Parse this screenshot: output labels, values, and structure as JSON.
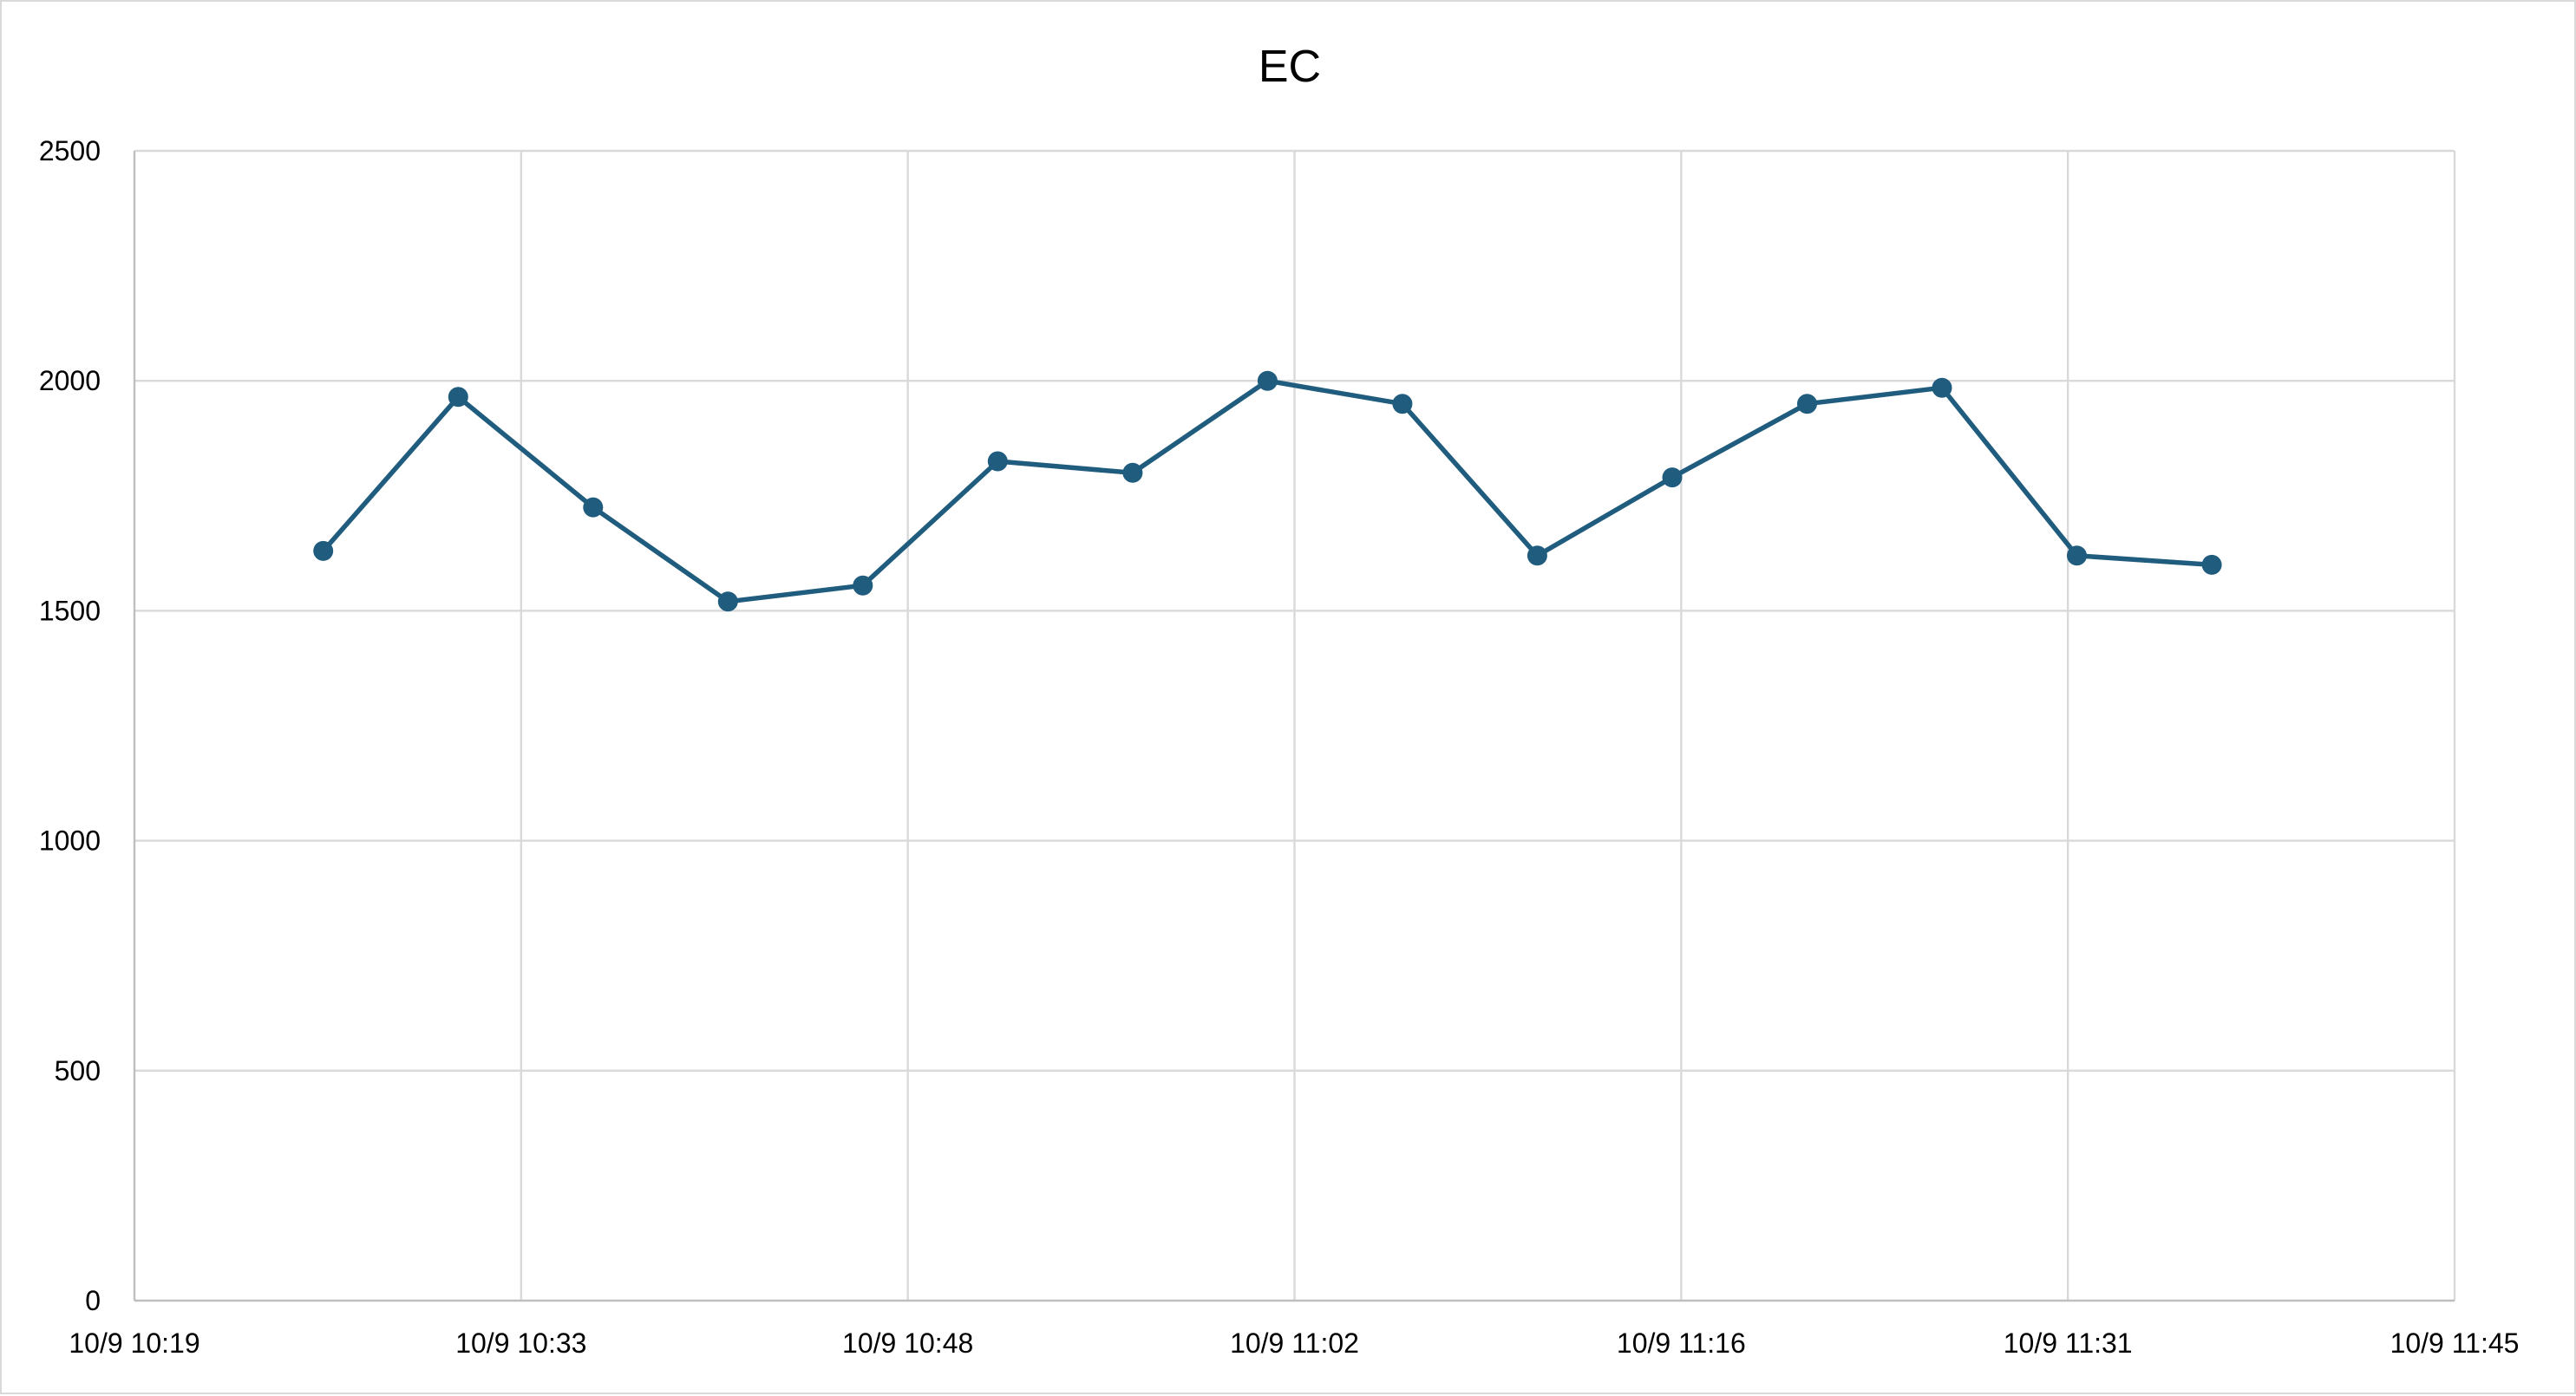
{
  "chart_data": {
    "type": "line",
    "title": "EC",
    "xlabel": "",
    "ylabel": "",
    "x_tick_labels": [
      "10/9 10:19",
      "10/9 10:33",
      "10/9 10:48",
      "10/9 11:02",
      "10/9 11:16",
      "10/9 11:31",
      "10/9 11:45"
    ],
    "y_tick_labels": [
      "0",
      "500",
      "1000",
      "1500",
      "2000",
      "2500"
    ],
    "xlim": [
      "10/9 10:19",
      "10/9 11:45"
    ],
    "ylim": [
      0,
      2500
    ],
    "grid": true,
    "legend": "none",
    "series": [
      {
        "color": "#1f5c7e",
        "x": [
          "10/9 10:26",
          "10/9 10:31",
          "10/9 10:36",
          "10/9 10:41",
          "10/9 10:46",
          "10/9 10:51",
          "10/9 10:56",
          "10/9 11:01",
          "10/9 11:06",
          "10/9 11:11",
          "10/9 11:16",
          "10/9 11:21",
          "10/9 11:26",
          "10/9 11:31",
          "10/9 11:36"
        ],
        "values": [
          1630,
          1965,
          1725,
          1520,
          1555,
          1825,
          1800,
          2000,
          1950,
          1620,
          1790,
          1950,
          1985,
          1620,
          1600
        ]
      }
    ]
  }
}
